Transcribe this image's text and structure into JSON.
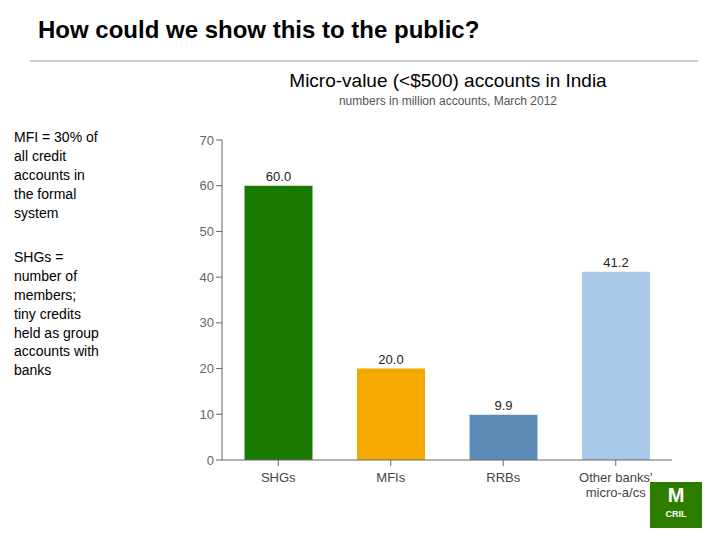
{
  "chart_data": {
    "type": "bar",
    "title": "How could we show this to the public?",
    "subtitle": [
      "Micro-value (<$500) accounts in India",
      "numbers in million accounts, March 2012"
    ],
    "categories": [
      "SHGs",
      "MFIs",
      "RRBs",
      "Other banks'\nmicro-a/cs"
    ],
    "values": [
      60.0,
      20.0,
      9.9,
      41.2
    ],
    "value_labels": [
      "60.0",
      "20.0",
      "9.9",
      "41.2"
    ],
    "colors": [
      "#1a7a00",
      "#f5a800",
      "#5b8db8",
      "#a8c8e8"
    ],
    "ylim": [
      0,
      70
    ],
    "yticks": [
      0,
      10,
      20,
      30,
      40,
      50,
      60,
      70
    ],
    "data_labels": true,
    "grid": false,
    "annotations": [
      "MFI = 30% of\nall credit\naccounts in\nthe formal\nsystem",
      "SHGs =\nnumber of\nmembers;\ntiny credits\nheld as group\naccounts with\nbanks",
      "M",
      "CRIL"
    ]
  }
}
